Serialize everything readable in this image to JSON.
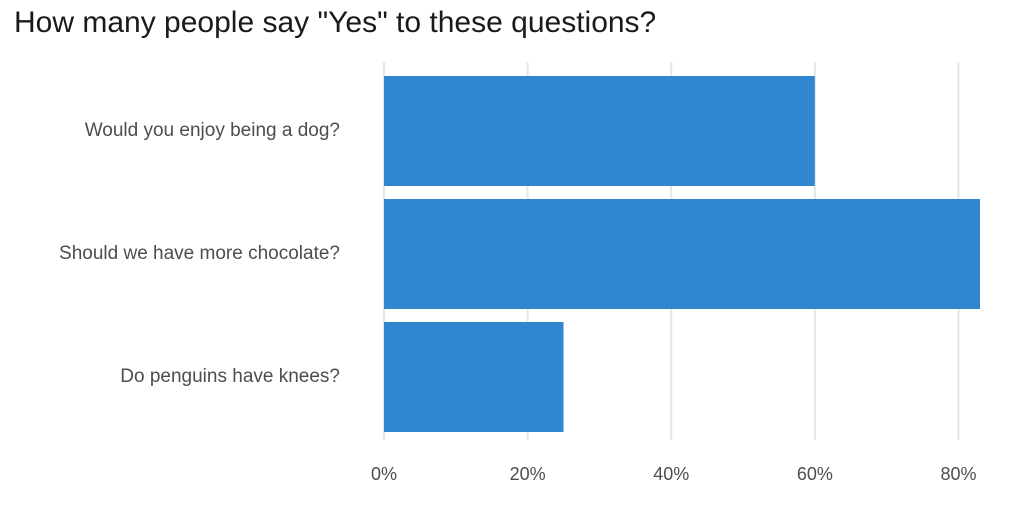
{
  "chart_data": {
    "type": "bar",
    "orientation": "horizontal",
    "title": "How many people say \"Yes\" to these questions?",
    "categories": [
      "Would you enjoy being a dog?",
      "Should we have more chocolate?",
      "Do penguins have knees?"
    ],
    "values": [
      60,
      83,
      25
    ],
    "unit": "%",
    "xlim": [
      0,
      83
    ],
    "xticks": [
      0,
      20,
      40,
      60,
      80
    ],
    "xtick_labels": [
      "0%",
      "20%",
      "40%",
      "60%",
      "80%"
    ],
    "grid": true,
    "bar_color": "#3087d0",
    "grid_color": "#e6e6e6",
    "text_color": "#4d4d4d"
  }
}
